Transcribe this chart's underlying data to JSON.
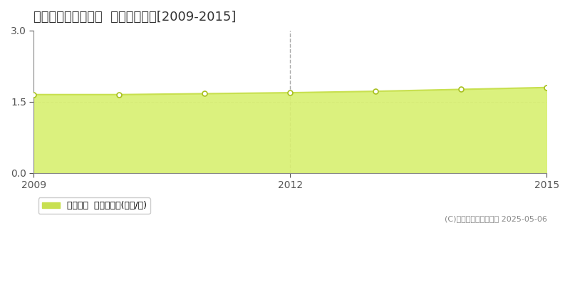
{
  "title": "朝倉郡筑前町大久保  土地価格推移[2009-2015]",
  "years": [
    2009,
    2010,
    2011,
    2012,
    2013,
    2014,
    2015
  ],
  "values": [
    1.65,
    1.65,
    1.67,
    1.69,
    1.72,
    1.76,
    1.8
  ],
  "ylim": [
    0,
    3
  ],
  "yticks": [
    0,
    1.5,
    3
  ],
  "xticks": [
    2009,
    2012,
    2015
  ],
  "line_color": "#c8e050",
  "fill_color": "#d8f070",
  "fill_alpha": 0.9,
  "marker_color": "white",
  "marker_edge_color": "#a8c020",
  "dashed_line_x": 2012,
  "dashed_line_color": "#aaaaaa",
  "grid_color": "#bbbbbb",
  "background_color": "#ffffff",
  "legend_label": "土地価格  平均坪単価(万円/坪)",
  "legend_marker_color": "#c8e050",
  "copyright_text": "(C)土地価格ドットコム 2025-05-06",
  "title_fontsize": 13,
  "axis_fontsize": 10,
  "legend_fontsize": 9,
  "copyright_fontsize": 8
}
